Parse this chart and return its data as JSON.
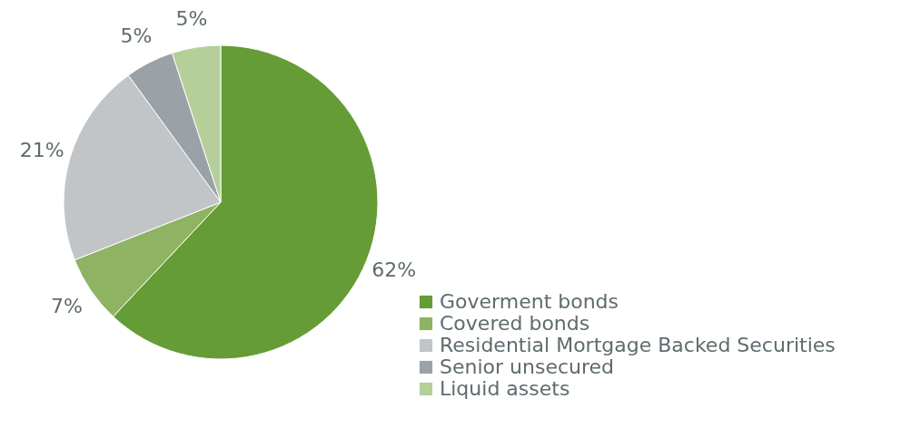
{
  "chart_data": {
    "type": "pie",
    "categories": [
      "Goverment bonds",
      "Covered bonds",
      "Residential Mortgage Backed Securities",
      "Senior unsecured",
      "Liquid assets"
    ],
    "values": [
      62,
      7,
      21,
      5,
      5
    ],
    "value_labels": [
      "62%",
      "7%",
      "21%",
      "5%",
      "5%"
    ],
    "colors": [
      "#659c35",
      "#8db363",
      "#c1c5c8",
      "#9aa2a8",
      "#b5cf9a"
    ],
    "legend": "bottom right"
  }
}
